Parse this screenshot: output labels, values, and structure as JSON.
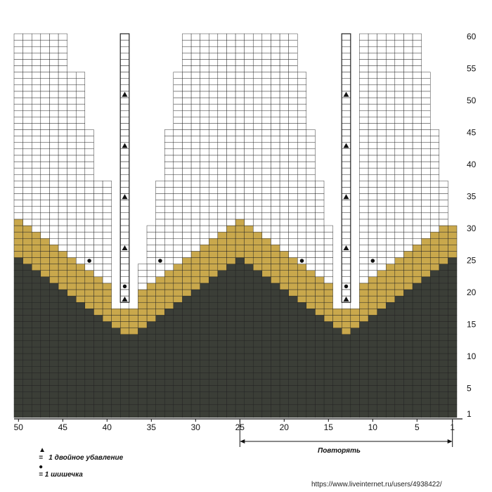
{
  "chart_data": {
    "type": "knitting-chart",
    "stitch_columns": 50,
    "rows": 60,
    "row_labels": [
      "1",
      "5",
      "10",
      "15",
      "20",
      "25",
      "30",
      "35",
      "40",
      "45",
      "50",
      "55",
      "60"
    ],
    "column_labels": [
      "50",
      "45",
      "40",
      "35",
      "30",
      "25",
      "20",
      "15",
      "10",
      "5",
      "1"
    ],
    "colors": {
      "dark": "#3b3e37",
      "gold": "#c9a84c",
      "light_gold": "#efe1b5",
      "grid": "#222222",
      "background": "#ffffff"
    },
    "notes": {
      "zigzag_peaks_at_columns": [
        50,
        25,
        1
      ],
      "v_bottoms_at_columns": [
        38,
        13
      ],
      "gold_band_width_stitches": 6,
      "decrease_rows": [
        19,
        27,
        35,
        43,
        51
      ],
      "bobble_rows": [
        21,
        25
      ]
    },
    "symbols": {
      "triangle": "decrease-triangle",
      "dot": "bobble-dot"
    },
    "legend": [
      {
        "symbol": "▲",
        "text": "=   1 двойное убавление"
      },
      {
        "symbol": "●",
        "text": "= 1 шишечка"
      }
    ],
    "repeat_label": "Повторять"
  },
  "watermark": "https://www.liveinternet.ru/users/4938422/"
}
